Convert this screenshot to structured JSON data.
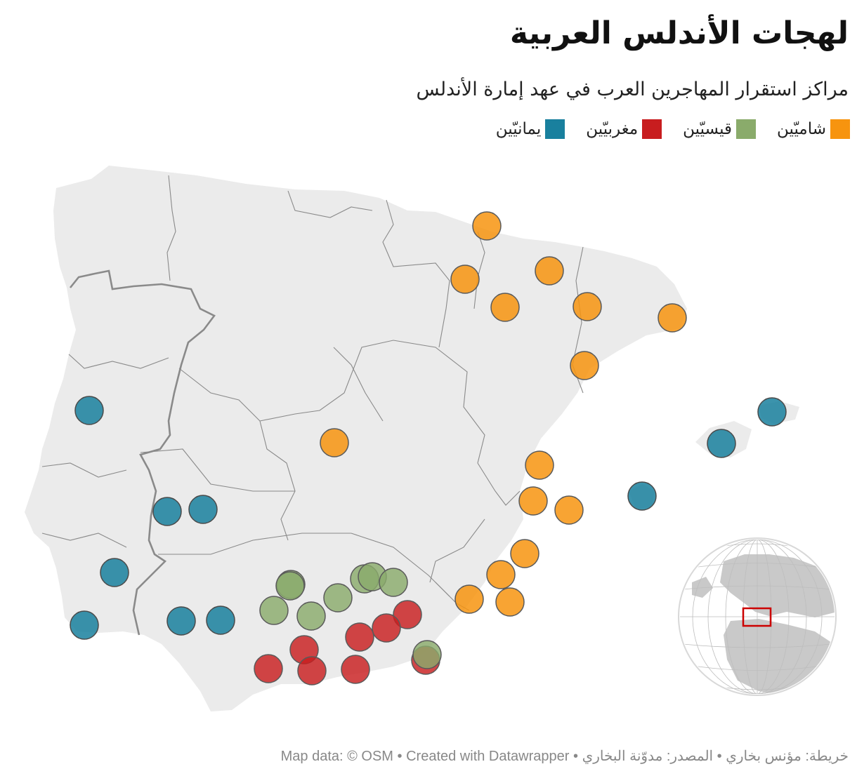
{
  "title": "لهجات الأندلس العربية",
  "subtitle": "مراكز استقرار المهاجرين العرب في عهد إمارة الأندلس",
  "legend": [
    {
      "label": "شاميّين",
      "color": "#f7940f"
    },
    {
      "label": "قيسيّين",
      "color": "#8aab6b"
    },
    {
      "label": "مغربيّين",
      "color": "#c81d1f"
    },
    {
      "label": "يمانيّين",
      "color": "#19809e"
    }
  ],
  "footer": {
    "credit": "خريطة: مؤنس بخاري",
    "source": "المصدر: مدوّنة البخاري",
    "tool": "Created with Datawrapper",
    "map_data": "Map data: © OSM"
  },
  "map": {
    "land_color": "#ebebeb",
    "border_color": "#8a8a8a",
    "inset_frame_color": "#cc0000",
    "inset_icon": "globe-locator-icon"
  }
}
